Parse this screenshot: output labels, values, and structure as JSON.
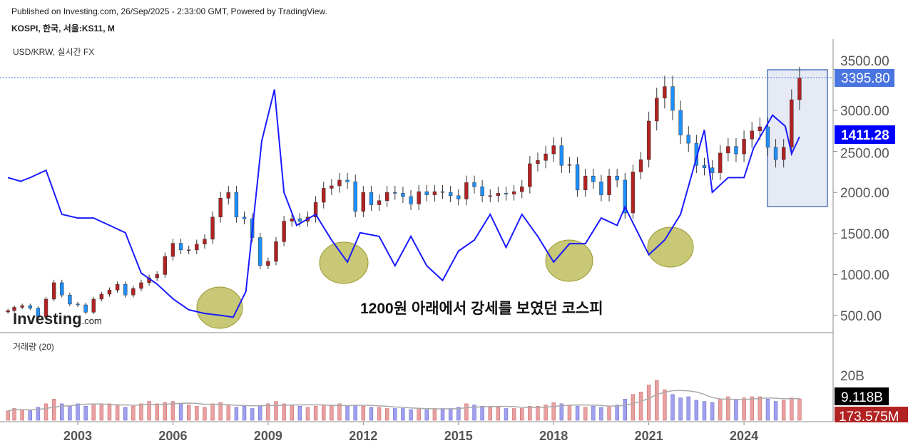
{
  "header": {
    "published": "Published on Investing.com, 26/Sep/2025 - 2:33:00 GMT, Powered by TradingView.",
    "symbol": "KOSPI, 한국, 서울:KS11, M",
    "overlay": "USD/KRW, 실시간 FX",
    "volume_label": "거래량 (20)",
    "logo": "Investing.com"
  },
  "colors": {
    "up": "#b22222",
    "down": "#1e90ff",
    "usdkrw": "#1a1aff",
    "last_price_bg": "#4a74e0",
    "fx_bg": "#0000ff",
    "vol_up": "#e8a0a0",
    "vol_down": "#a0a0ee",
    "ellipse": "#b5b54a"
  },
  "chart_data": {
    "type": "candlestick+line",
    "title": "KOSPI, 한국, 서울:KS11, M",
    "price_axis": {
      "ticks": [
        "500.00",
        "1000.00",
        "1500.00",
        "2000.00",
        "2500.00",
        "3000.00",
        "3500.00"
      ],
      "tick_values": [
        500,
        1000,
        1500,
        2000,
        2500,
        3000,
        3500
      ]
    },
    "x_ticks": [
      "2003",
      "2006",
      "2009",
      "2012",
      "2015",
      "2018",
      "2021",
      "2024"
    ],
    "x_tick_values": [
      2003,
      2006,
      2009,
      2012,
      2015,
      2018,
      2021,
      2024
    ],
    "last_price": "3395.80",
    "fx_last": "1411.28",
    "volume_axis": {
      "ticks": [
        "20B"
      ],
      "last_volume": "9.118B",
      "volume_ma": "173.575M"
    },
    "annotation": "1200원 아래에서 강세를 보였던 코스피",
    "kospi": {
      "t": [
        2000.8,
        2001.0,
        2001.25,
        2001.5,
        2001.75,
        2002.0,
        2002.25,
        2002.5,
        2002.75,
        2003.0,
        2003.25,
        2003.5,
        2003.75,
        2004.0,
        2004.25,
        2004.5,
        2004.75,
        2005.0,
        2005.25,
        2005.5,
        2005.75,
        2006.0,
        2006.25,
        2006.5,
        2006.75,
        2007.0,
        2007.25,
        2007.5,
        2007.75,
        2008.0,
        2008.25,
        2008.5,
        2008.75,
        2009.0,
        2009.25,
        2009.5,
        2009.75,
        2010.0,
        2010.25,
        2010.5,
        2010.75,
        2011.0,
        2011.25,
        2011.5,
        2011.75,
        2012.0,
        2012.25,
        2012.5,
        2012.75,
        2013.0,
        2013.25,
        2013.5,
        2013.75,
        2014.0,
        2014.25,
        2014.5,
        2014.75,
        2015.0,
        2015.25,
        2015.5,
        2015.75,
        2016.0,
        2016.25,
        2016.5,
        2016.75,
        2017.0,
        2017.25,
        2017.5,
        2017.75,
        2018.0,
        2018.25,
        2018.5,
        2018.75,
        2019.0,
        2019.25,
        2019.5,
        2019.75,
        2020.0,
        2020.25,
        2020.5,
        2020.75,
        2021.0,
        2021.25,
        2021.5,
        2021.75,
        2022.0,
        2022.25,
        2022.5,
        2022.75,
        2023.0,
        2023.25,
        2023.5,
        2023.75,
        2024.0,
        2024.25,
        2024.5,
        2024.75,
        2025.0,
        2025.25,
        2025.5,
        2025.75
      ],
      "close": [
        560,
        600,
        620,
        590,
        480,
        700,
        900,
        750,
        640,
        630,
        540,
        700,
        760,
        810,
        880,
        750,
        830,
        900,
        960,
        1000,
        1220,
        1380,
        1300,
        1300,
        1370,
        1430,
        1700,
        1930,
        2000,
        1700,
        1680,
        1450,
        1110,
        1160,
        1400,
        1650,
        1680,
        1650,
        1700,
        1880,
        2050,
        2080,
        2150,
        2130,
        1770,
        2000,
        1850,
        1900,
        2000,
        1990,
        1950,
        1860,
        2010,
        1970,
        2010,
        2000,
        1960,
        1920,
        2120,
        2070,
        1960,
        1960,
        1990,
        1980,
        2010,
        2070,
        2350,
        2390,
        2470,
        2570,
        2330,
        2340,
        2030,
        2200,
        2130,
        1970,
        2200,
        2150,
        1750,
        2250,
        2400,
        2870,
        3150,
        3290,
        3000,
        2700,
        2600,
        2330,
        2300,
        2240,
        2480,
        2560,
        2470,
        2650,
        2750,
        2800,
        2550,
        2400,
        2550,
        3130,
        3395.8
      ],
      "volume_b": [
        4,
        5,
        4.5,
        4,
        5.5,
        7,
        9,
        7,
        6,
        7,
        6,
        6.5,
        7,
        7,
        6.5,
        5.5,
        6,
        7,
        8,
        7,
        7.5,
        8,
        7,
        6.5,
        6,
        5.5,
        7,
        7.5,
        6.5,
        5.5,
        6,
        5,
        6,
        7,
        8,
        7,
        6.5,
        6,
        5.5,
        6,
        6.5,
        6.5,
        7,
        6,
        6.5,
        6,
        5.5,
        5.5,
        5,
        5,
        5,
        4.5,
        5,
        4.5,
        5,
        5,
        5,
        5.5,
        7,
        6.5,
        6,
        5.5,
        5.5,
        5,
        5,
        5,
        6,
        6,
        6.5,
        7.5,
        7,
        6.5,
        6,
        5.5,
        6,
        5.5,
        6,
        6.5,
        9,
        11,
        12,
        15,
        17,
        13,
        11,
        9.5,
        10,
        8.5,
        8,
        7.5,
        9,
        10,
        9,
        9.5,
        10,
        10,
        9,
        8,
        8.5,
        9.5,
        9.1
      ]
    },
    "usdkrw": {
      "t": [
        2000.8,
        2001.2,
        2001.5,
        2002.0,
        2002.5,
        2003.0,
        2003.5,
        2004.0,
        2004.5,
        2005.0,
        2005.5,
        2006.0,
        2006.5,
        2007.0,
        2007.5,
        2007.9,
        2008.3,
        2008.8,
        2009.2,
        2009.5,
        2009.9,
        2010.5,
        2011.0,
        2011.5,
        2011.9,
        2012.5,
        2013.0,
        2013.5,
        2014.0,
        2014.5,
        2015.0,
        2015.5,
        2016.0,
        2016.5,
        2017.0,
        2017.5,
        2018.0,
        2018.5,
        2019.0,
        2019.5,
        2020.0,
        2020.25,
        2021.0,
        2021.5,
        2022.0,
        2022.75,
        2023.0,
        2023.5,
        2024.0,
        2024.3,
        2024.9,
        2025.3,
        2025.5,
        2025.75
      ],
      "values": [
        1300,
        1290,
        1300,
        1320,
        1200,
        1190,
        1190,
        1170,
        1150,
        1040,
        1010,
        970,
        940,
        930,
        925,
        920,
        990,
        1400,
        1540,
        1260,
        1170,
        1200,
        1130,
        1070,
        1150,
        1140,
        1060,
        1140,
        1060,
        1020,
        1100,
        1130,
        1200,
        1110,
        1200,
        1140,
        1070,
        1120,
        1120,
        1190,
        1170,
        1220,
        1090,
        1130,
        1200,
        1430,
        1260,
        1300,
        1300,
        1380,
        1470,
        1440,
        1365,
        1411.28
      ]
    }
  }
}
